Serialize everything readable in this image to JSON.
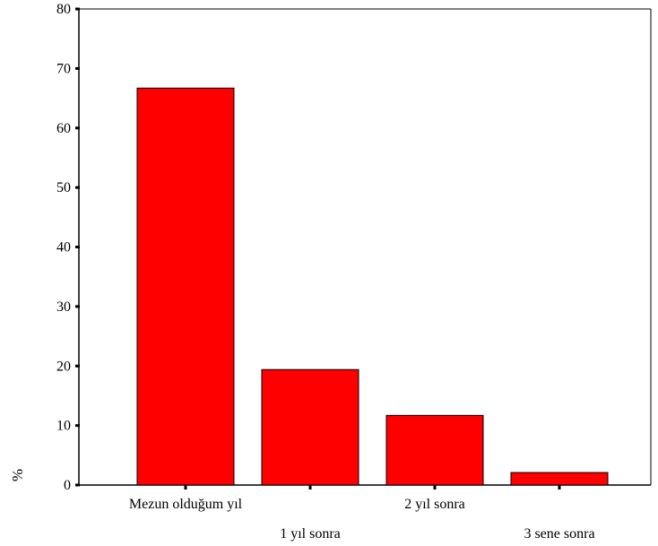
{
  "chart_data": {
    "type": "bar",
    "categories": [
      "Mezun olduğum yıl",
      "1 yıl sonra",
      "2 yıl sonra",
      "3 sene sonra"
    ],
    "values": [
      66.7,
      19.4,
      11.7,
      2.1
    ],
    "ylabel": "%",
    "ylim": [
      0,
      80
    ],
    "yticks": [
      0,
      10,
      20,
      30,
      40,
      50,
      60,
      70,
      80
    ],
    "bar_color": "#ff0000",
    "grid": false
  }
}
